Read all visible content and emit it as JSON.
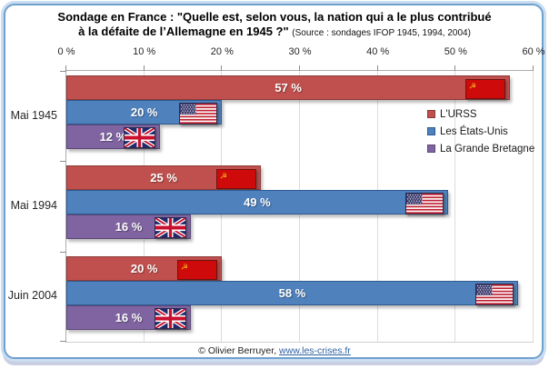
{
  "title": {
    "line1": "Sondage en France : \"Quelle est, selon vous, la nation qui a le plus contribué",
    "line2": "à la défaite de l’Allemagne en 1945 ?\"",
    "source": "(Source : sondages IFOP 1945, 1994, 2004)"
  },
  "chart_data": {
    "type": "bar",
    "orientation": "horizontal",
    "title": "Sondage en France : \"Quelle est, selon vous, la nation qui a le plus contribué à la défaite de l’Allemagne en 1945 ?\" (Source : sondages IFOP 1945, 1994, 2004)",
    "categories": [
      "Mai 1945",
      "Mai 1994",
      "Juin 2004"
    ],
    "series": [
      {
        "name": "L'URSS",
        "flag": "ussr",
        "color": "#C0504D",
        "border_color": "#8E3A38",
        "values": [
          57,
          25,
          20
        ],
        "labels": [
          "57 %",
          "25 %",
          "20 %"
        ]
      },
      {
        "name": "Les États-Unis",
        "flag": "usa",
        "color": "#4F81BD",
        "border_color": "#2E5A8F",
        "values": [
          20,
          49,
          58
        ],
        "labels": [
          "20 %",
          "49 %",
          "58 %"
        ]
      },
      {
        "name": "La Grande Bretagne",
        "flag": "uk",
        "color": "#8064A2",
        "border_color": "#5D4878",
        "values": [
          12,
          16,
          16
        ],
        "labels": [
          "12 %",
          "16 %",
          "16 %"
        ]
      }
    ],
    "x_ticks": [
      "0 %",
      "10 %",
      "20 %",
      "30 %",
      "40 %",
      "50 %",
      "60 %"
    ],
    "xlim": [
      0,
      60
    ],
    "grid": "vertical",
    "legend_position": "inside-top-right",
    "flag_colors": {
      "ussr_red": "#CF0A0A",
      "ussr_gold": "#F5C417",
      "usa_red": "#BF2333",
      "usa_blue": "#3C3B6E",
      "usa_white": "#FFFFFF",
      "uk_blue": "#1F2A6B",
      "uk_red": "#C8102E",
      "uk_white": "#FFFFFF"
    }
  },
  "footer": {
    "copyright": "© Olivier Berruyer,",
    "link": "www.les-crises.fr"
  }
}
